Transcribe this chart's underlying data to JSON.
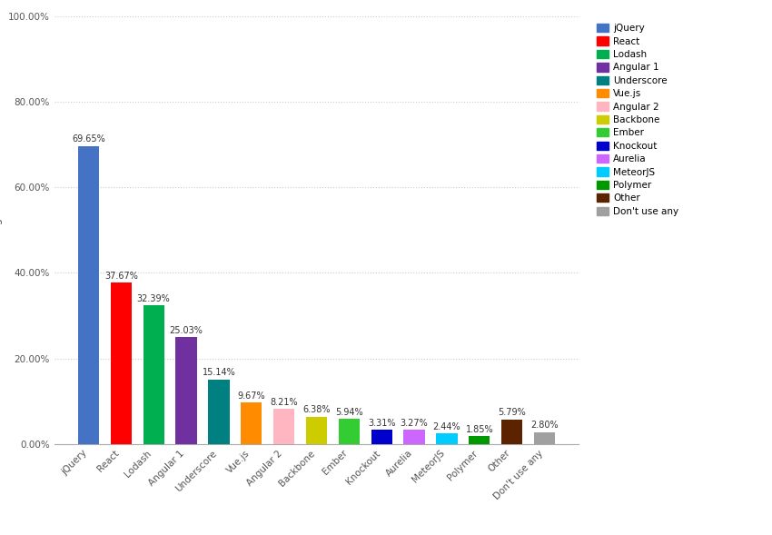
{
  "categories": [
    "jQuery",
    "React",
    "Lodash",
    "Angular 1",
    "Underscore",
    "Vue.js",
    "Angular 2",
    "Backbone",
    "Ember",
    "Knockout",
    "Aurelia",
    "MeteorJS",
    "Polymer",
    "Other",
    "Don't use any"
  ],
  "values": [
    69.65,
    37.67,
    32.39,
    25.03,
    15.14,
    9.67,
    8.21,
    6.38,
    5.94,
    3.31,
    3.27,
    2.44,
    1.85,
    5.79,
    2.8
  ],
  "colors": [
    "#4472C4",
    "#FF0000",
    "#00B050",
    "#7030A0",
    "#008080",
    "#FF8C00",
    "#FFB6C1",
    "#CCCC00",
    "#33CC33",
    "#0000CD",
    "#CC66FF",
    "#00CCFF",
    "#009900",
    "#5C2300",
    "#A0A0A0"
  ],
  "labels": [
    "69.65%",
    "37.67%",
    "32.39%",
    "25.03%",
    "15.14%",
    "9.67%",
    "8.21%",
    "6.38%",
    "5.94%",
    "3.31%",
    "3.27%",
    "2.44%",
    "1.85%",
    "5.79%",
    "2.80%"
  ],
  "legend_labels": [
    "jQuery",
    "React",
    "Lodash",
    "Angular 1",
    "Underscore",
    "Vue.js",
    "Angular 2",
    "Backbone",
    "Ember",
    "Knockout",
    "Aurelia",
    "MeteorJS",
    "Polymer",
    "Other",
    "Don't use any"
  ],
  "legend_colors": [
    "#4472C4",
    "#FF0000",
    "#00B050",
    "#7030A0",
    "#008080",
    "#FF8C00",
    "#FFB6C1",
    "#CCCC00",
    "#33CC33",
    "#0000CD",
    "#CC66FF",
    "#00CCFF",
    "#009900",
    "#5C2300",
    "#A0A0A0"
  ],
  "ylim": [
    0,
    100
  ],
  "yticks": [
    0,
    20,
    40,
    60,
    80,
    100
  ],
  "ytick_labels": [
    "0.00%",
    "20.00%",
    "40.00%",
    "60.00%",
    "80.00%",
    "100.00%"
  ],
  "background_color": "#FFFFFF",
  "grid_color": "#CCCCCC",
  "label_fontsize": 7,
  "tick_fontsize": 7.5,
  "ylabel_fontsize": 8.5,
  "legend_fontsize": 7.5,
  "bar_width": 0.65
}
